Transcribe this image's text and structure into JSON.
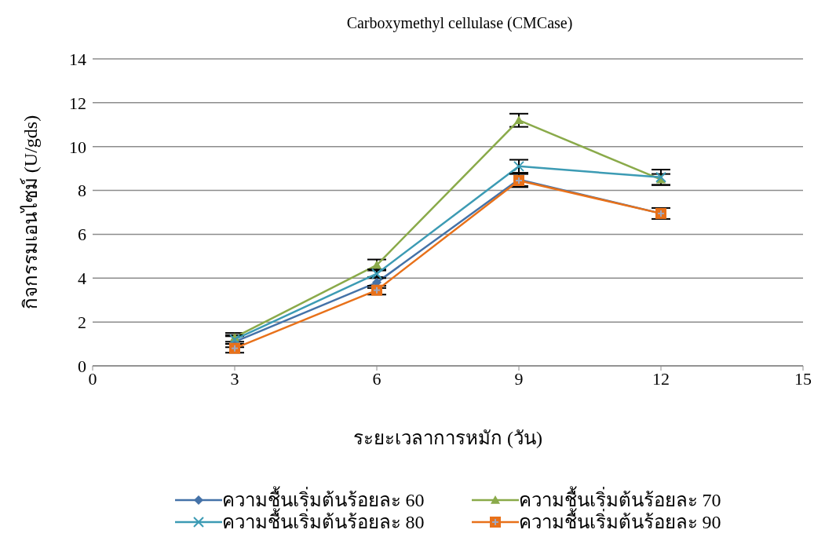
{
  "chart_data": {
    "type": "line",
    "title": "Carboxymethyl cellulase (CMCase)",
    "xlabel": "ระยะเวลาการหมัก (วัน)",
    "ylabel": "กิจกรรมเอนไซม์ (U/gds)",
    "x": [
      3,
      6,
      9,
      12
    ],
    "xlim": [
      0,
      15
    ],
    "xticks": [
      0,
      3,
      6,
      9,
      12,
      15
    ],
    "ylim": [
      0,
      14
    ],
    "yticks": [
      0,
      2,
      4,
      6,
      8,
      10,
      12,
      14
    ],
    "grid": "y",
    "legend": "bottom",
    "line_style": "solid",
    "series": [
      {
        "name": "ความชื้นเริ่มต้นร้อยละ 60",
        "color": "#4472a8",
        "marker": "diamond",
        "values": [
          1.1,
          3.8,
          8.5,
          6.95
        ],
        "errors": [
          0.25,
          0.25,
          0.3,
          null
        ]
      },
      {
        "name": "ความชื้นเริ่มต้นร้อยละ 70",
        "color": "#8aaa4a",
        "marker": "triangle",
        "values": [
          1.3,
          4.6,
          11.2,
          8.5
        ],
        "errors": [
          0.2,
          0.25,
          0.3,
          0.25
        ]
      },
      {
        "name": "ความชื้นเริ่มต้นร้อยละ 80",
        "color": "#3c9bb4",
        "marker": "cross",
        "values": [
          1.2,
          4.2,
          9.1,
          8.6
        ],
        "errors": [
          0.2,
          0.2,
          0.3,
          0.35
        ]
      },
      {
        "name": "ความชื้นเริ่มต้นร้อยละ 90",
        "color": "#e8711a",
        "marker": "square",
        "values": [
          0.8,
          3.45,
          8.45,
          6.95
        ],
        "errors": [
          0.2,
          0.2,
          0.3,
          0.25
        ]
      }
    ]
  }
}
